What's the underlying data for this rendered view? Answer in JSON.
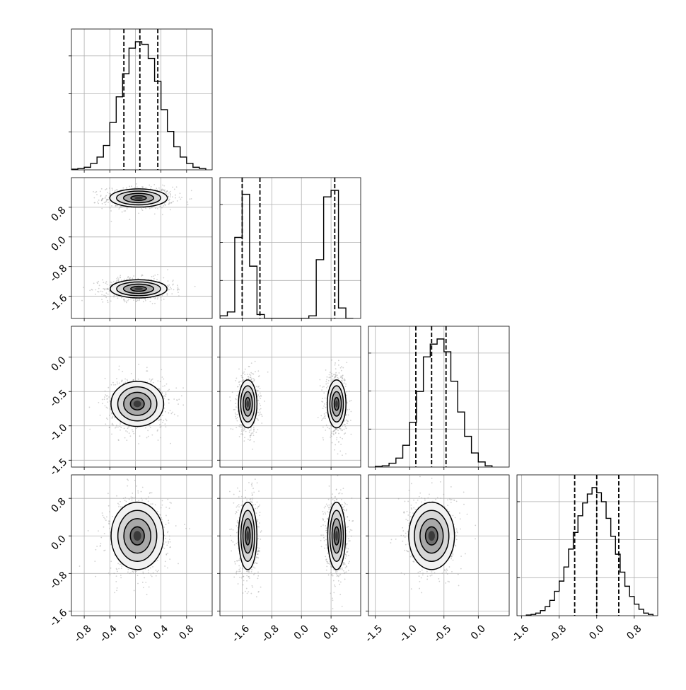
{
  "chart_data": {
    "type": "corner",
    "n_params": 4,
    "axis_ranges": [
      [
        -1.0,
        1.2
      ],
      [
        -2.2,
        1.6
      ],
      [
        -1.6,
        0.45
      ],
      [
        -1.7,
        1.3
      ]
    ],
    "ticks": [
      [
        "-0.8",
        "-0.4",
        "0.0",
        "0.4",
        "0.8"
      ],
      [
        "-1.6",
        "-0.8",
        "0.0",
        "0.8"
      ],
      [
        "-1.5",
        "-1.0",
        "-0.5",
        "0.0"
      ],
      [
        "-1.6",
        "-0.8",
        "0.0",
        "0.8"
      ]
    ],
    "tick_values": [
      [
        -0.8,
        -0.4,
        0.0,
        0.4,
        0.8
      ],
      [
        -1.6,
        -0.8,
        0.0,
        0.8
      ],
      [
        -1.5,
        -1.0,
        -0.5,
        0.0
      ],
      [
        -1.6,
        -0.8,
        0.0,
        0.8
      ]
    ],
    "grid": true,
    "histograms": [
      {
        "bin_edges": [
          -1.0,
          -0.9,
          -0.8,
          -0.7,
          -0.6,
          -0.5,
          -0.4,
          -0.3,
          -0.2,
          -0.1,
          0.0,
          0.1,
          0.2,
          0.3,
          0.4,
          0.5,
          0.6,
          0.7,
          0.8,
          0.9,
          1.0,
          1.1
        ],
        "counts": [
          0.5,
          1,
          2,
          5,
          10,
          19,
          37,
          57,
          75,
          95,
          100,
          98,
          87,
          69,
          47,
          30,
          18,
          10,
          5,
          2,
          1
        ],
        "quantiles": [
          -0.18,
          0.07,
          0.35
        ]
      },
      {
        "bin_edges": [
          -2.2,
          -2.0,
          -1.8,
          -1.6,
          -1.4,
          -1.2,
          -1.0,
          -0.8,
          -0.6,
          -0.4,
          -0.2,
          0.0,
          0.2,
          0.4,
          0.6,
          0.8,
          1.0,
          1.2,
          1.4
        ],
        "counts": [
          2,
          5,
          62,
          95,
          40,
          3,
          0,
          0,
          0,
          0,
          0,
          0,
          2,
          45,
          93,
          98,
          8,
          0
        ],
        "quantiles": [
          -1.6,
          -1.12,
          0.9
        ]
      },
      {
        "bin_edges": [
          -1.5,
          -1.4,
          -1.3,
          -1.2,
          -1.1,
          -1.0,
          -0.9,
          -0.8,
          -0.7,
          -0.6,
          -0.5,
          -0.4,
          -0.3,
          -0.2,
          -0.1,
          0.0,
          0.1,
          0.2
        ],
        "counts": [
          0.5,
          1,
          3,
          7,
          17,
          35,
          59,
          86,
          96,
          100,
          90,
          67,
          43,
          24,
          11,
          4,
          1
        ],
        "quantiles": [
          -0.91,
          -0.68,
          -0.47
        ]
      },
      {
        "bin_edges": [
          -1.5,
          -1.4,
          -1.3,
          -1.2,
          -1.1,
          -1.0,
          -0.9,
          -0.8,
          -0.7,
          -0.6,
          -0.5,
          -0.4,
          -0.3,
          -0.2,
          -0.1,
          0.0,
          0.1,
          0.2,
          0.3,
          0.4,
          0.5,
          0.6,
          0.7,
          0.8,
          0.9,
          1.0,
          1.1,
          1.2
        ],
        "counts": [
          0.5,
          1,
          2,
          4,
          7,
          12,
          19,
          27,
          38,
          52,
          65,
          78,
          88,
          95,
          100,
          96,
          89,
          76,
          62,
          48,
          34,
          23,
          15,
          9,
          5,
          2,
          1
        ],
        "quantiles": [
          -0.47,
          0.0,
          0.47
        ]
      }
    ],
    "pairs": [
      {
        "row": 1,
        "col": 0,
        "clusters": [
          {
            "cx": 0.05,
            "cy": 1.05,
            "sx": 0.22,
            "sy": 0.12
          },
          {
            "cx": 0.05,
            "cy": -1.4,
            "sx": 0.22,
            "sy": 0.12
          }
        ]
      },
      {
        "row": 2,
        "col": 0,
        "clusters": [
          {
            "cx": 0.03,
            "cy": -0.68,
            "sx": 0.2,
            "sy": 0.16
          }
        ]
      },
      {
        "row": 2,
        "col": 1,
        "clusters": [
          {
            "cx": -1.45,
            "cy": -0.68,
            "sx": 0.12,
            "sy": 0.17
          },
          {
            "cx": 0.95,
            "cy": -0.68,
            "sx": 0.12,
            "sy": 0.17
          }
        ]
      },
      {
        "row": 3,
        "col": 0,
        "clusters": [
          {
            "cx": 0.03,
            "cy": 0.0,
            "sx": 0.2,
            "sy": 0.35
          }
        ]
      },
      {
        "row": 3,
        "col": 1,
        "clusters": [
          {
            "cx": -1.45,
            "cy": 0.0,
            "sx": 0.12,
            "sy": 0.35
          },
          {
            "cx": 0.95,
            "cy": 0.0,
            "sx": 0.12,
            "sy": 0.35
          }
        ]
      },
      {
        "row": 3,
        "col": 2,
        "clusters": [
          {
            "cx": -0.68,
            "cy": 0.0,
            "sx": 0.16,
            "sy": 0.35
          }
        ]
      }
    ]
  }
}
